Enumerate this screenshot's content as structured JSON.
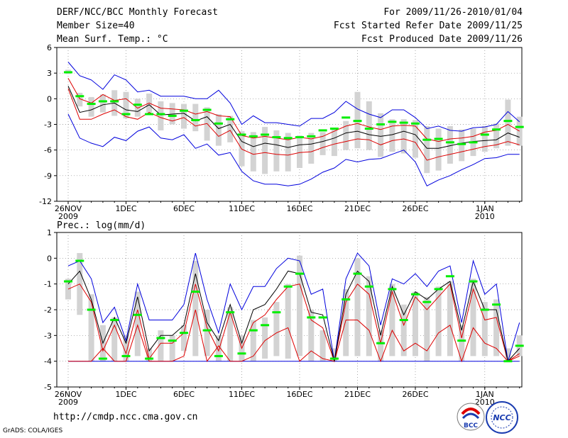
{
  "header": {
    "left": [
      "DERF/NCC/BCC Monthly Forecast",
      "Member Size=40",
      "Mean Surf. Temp.: °C"
    ],
    "right": [
      "For 2009/11/26-2010/01/04",
      "Fcst Started Refer Date 2009/11/25",
      "Fcst Produced Date 2009/11/26"
    ]
  },
  "footer": {
    "url": "http://cmdp.ncc.cma.gov.cn",
    "credit": "GrADS: COLA/IGES"
  },
  "logos": {
    "bcc": "BCC",
    "ncc": "NCC"
  },
  "colors": {
    "box": "#d3d3d3",
    "mean": "#00ee00",
    "envelope": "#0000dd",
    "spread": "#dd0000",
    "median": "#000000"
  },
  "chart_data": [
    {
      "type": "box-ensemble",
      "title": "Mean Surf. Temp.: °C",
      "x_ticks": [
        {
          "i": 0,
          "label": "26NOV",
          "sub": "2009"
        },
        {
          "i": 5,
          "label": "1DEC"
        },
        {
          "i": 10,
          "label": "6DEC"
        },
        {
          "i": 15,
          "label": "11DEC"
        },
        {
          "i": 20,
          "label": "16DEC"
        },
        {
          "i": 25,
          "label": "21DEC"
        },
        {
          "i": 30,
          "label": "26DEC"
        },
        {
          "i": 36,
          "label": "1JAN",
          "sub": "2010"
        }
      ],
      "ylim": [
        -12,
        6
      ],
      "yticks": [
        -12,
        -9,
        -6,
        -3,
        0,
        3,
        6
      ],
      "days": 40,
      "series": {
        "box_top": [
          3.4,
          0.7,
          0.2,
          0.5,
          1.0,
          0.8,
          0.0,
          0.6,
          -0.3,
          -0.5,
          -0.6,
          -0.6,
          -1.0,
          -1.8,
          -2.0,
          -3.8,
          -3.9,
          -3.3,
          -3.7,
          -4.0,
          -4.3,
          -4.0,
          -3.9,
          -3.6,
          -2.6,
          0.8,
          -0.3,
          -1.7,
          -2.4,
          -2.4,
          -2.5,
          -3.2,
          -3.5,
          -3.2,
          -3.6,
          -3.5,
          -3.2,
          -2.9,
          -0.1,
          -2.1
        ],
        "box_bottom": [
          2.9,
          -0.9,
          -2.1,
          -1.6,
          -2.0,
          -2.3,
          -2.1,
          -1.6,
          -3.7,
          -3.0,
          -3.5,
          -3.8,
          -4.9,
          -5.5,
          -5.1,
          -7.9,
          -8.5,
          -8.8,
          -8.5,
          -8.5,
          -8.1,
          -7.6,
          -6.6,
          -6.7,
          -6.0,
          -5.8,
          -6.0,
          -6.8,
          -6.2,
          -6.4,
          -6.9,
          -8.7,
          -8.4,
          -7.6,
          -7.3,
          -6.7,
          -6.2,
          -5.8,
          -5.5,
          -5.5
        ],
        "mean": [
          3.1,
          0.3,
          -0.6,
          -0.3,
          -0.3,
          -1.8,
          -0.7,
          -1.8,
          -1.8,
          -2.0,
          -1.4,
          -2.5,
          -1.3,
          -2.9,
          -2.4,
          -4.2,
          -4.4,
          -4.2,
          -4.5,
          -4.6,
          -4.5,
          -4.4,
          -3.7,
          -3.5,
          -2.2,
          -2.6,
          -3.5,
          -3.0,
          -2.7,
          -2.8,
          -2.9,
          -4.8,
          -4.7,
          -5.1,
          -5.3,
          -5.1,
          -4.2,
          -3.6,
          -2.6,
          -3.3
        ],
        "env_max": [
          4.3,
          2.7,
          2.2,
          1.1,
          2.8,
          2.2,
          0.8,
          1.0,
          0.3,
          0.3,
          0.3,
          0.0,
          0.0,
          1.0,
          -0.5,
          -3.0,
          -2.0,
          -2.8,
          -2.8,
          -3.0,
          -3.2,
          -2.3,
          -2.3,
          -1.6,
          -0.3,
          -1.2,
          -1.8,
          -2.2,
          -1.3,
          -1.3,
          -2.2,
          -3.5,
          -3.2,
          -3.7,
          -3.8,
          -3.4,
          -3.3,
          -3.0,
          -1.5,
          -2.7
        ],
        "red_top": [
          2.4,
          0.0,
          -0.5,
          0.5,
          -0.2,
          0.0,
          -1.1,
          -0.5,
          -1.1,
          -1.2,
          -1.3,
          -1.8,
          -1.5,
          -2.0,
          -2.1,
          -4.3,
          -4.6,
          -4.4,
          -4.6,
          -4.8,
          -4.5,
          -4.7,
          -4.4,
          -3.8,
          -3.2,
          -2.9,
          -3.3,
          -3.6,
          -3.2,
          -3.1,
          -3.2,
          -4.7,
          -5.0,
          -4.7,
          -4.6,
          -4.4,
          -3.9,
          -3.7,
          -3.0,
          -3.8
        ],
        "median": [
          1.5,
          -1.6,
          -1.3,
          -0.7,
          -0.5,
          -1.3,
          -1.5,
          -0.7,
          -1.9,
          -1.8,
          -1.7,
          -2.6,
          -2.1,
          -3.5,
          -3.0,
          -5.0,
          -5.6,
          -5.2,
          -5.4,
          -5.7,
          -5.4,
          -5.3,
          -5.0,
          -4.6,
          -4.0,
          -3.8,
          -4.2,
          -4.4,
          -4.2,
          -3.8,
          -4.2,
          -5.8,
          -5.8,
          -5.5,
          -5.2,
          -5.0,
          -4.9,
          -4.8,
          -4.0,
          -4.5
        ],
        "red_bottom": [
          1.2,
          -2.4,
          -2.4,
          -1.8,
          -1.3,
          -2.1,
          -2.4,
          -1.6,
          -2.2,
          -2.6,
          -2.2,
          -3.2,
          -2.9,
          -4.4,
          -3.7,
          -5.9,
          -6.5,
          -6.3,
          -6.5,
          -6.6,
          -6.3,
          -6.2,
          -5.7,
          -5.3,
          -5.0,
          -4.7,
          -4.8,
          -5.4,
          -4.9,
          -4.7,
          -5.1,
          -7.2,
          -6.8,
          -6.5,
          -6.2,
          -5.9,
          -5.6,
          -5.4,
          -5.0,
          -5.4
        ],
        "env_min": [
          -1.8,
          -4.6,
          -5.2,
          -5.6,
          -4.5,
          -4.9,
          -3.8,
          -3.3,
          -4.6,
          -4.8,
          -4.2,
          -5.8,
          -5.3,
          -6.6,
          -6.3,
          -8.5,
          -9.6,
          -10.0,
          -10.0,
          -10.2,
          -10.0,
          -9.4,
          -8.6,
          -8.1,
          -7.1,
          -7.4,
          -7.1,
          -7.0,
          -6.5,
          -6.0,
          -7.4,
          -10.2,
          -9.5,
          -9.0,
          -8.3,
          -7.7,
          -7.0,
          -6.9,
          -6.5,
          -6.5
        ]
      }
    },
    {
      "type": "box-ensemble",
      "title": "Prec.: log(mm/d)",
      "x_ticks": [
        {
          "i": 0,
          "label": "26NOV",
          "sub": "2009"
        },
        {
          "i": 5,
          "label": "1DEC"
        },
        {
          "i": 10,
          "label": "6DEC"
        },
        {
          "i": 15,
          "label": "11DEC"
        },
        {
          "i": 20,
          "label": "16DEC"
        },
        {
          "i": 25,
          "label": "21DEC"
        },
        {
          "i": 30,
          "label": "26DEC"
        },
        {
          "i": 36,
          "label": "1JAN",
          "sub": "2010"
        }
      ],
      "ylim": [
        -5,
        1
      ],
      "yticks": [
        -5,
        -4,
        -3,
        -2,
        -1,
        0,
        1
      ],
      "days": 40,
      "series": {
        "box_top": [
          -0.8,
          0.2,
          -1.4,
          -2.6,
          -2.3,
          -3.0,
          -1.3,
          -3.5,
          -2.8,
          -3.0,
          -2.6,
          -0.1,
          -2.0,
          -3.0,
          -1.9,
          -3.0,
          -2.4,
          -2.3,
          -1.7,
          -1.0,
          0.1,
          -2.0,
          -2.8,
          -3.5,
          -1.2,
          0.0,
          -0.7,
          -2.8,
          -1.0,
          -1.8,
          -1.3,
          -1.5,
          -1.1,
          -0.9,
          -2.6,
          -0.8,
          -1.7,
          -1.6,
          -3.5,
          -3.0
        ],
        "box_bottom": [
          -1.6,
          -2.2,
          -4.0,
          -4.0,
          -4.0,
          -4.0,
          -3.8,
          -4.0,
          -4.0,
          -4.0,
          -3.6,
          -3.8,
          -3.8,
          -4.0,
          -4.0,
          -4.0,
          -4.0,
          -3.9,
          -3.8,
          -3.9,
          -3.8,
          -4.0,
          -4.0,
          -4.0,
          -3.8,
          -3.8,
          -3.8,
          -4.0,
          -3.8,
          -3.8,
          -3.8,
          -4.0,
          -3.8,
          -3.8,
          -4.0,
          -3.8,
          -3.8,
          -3.8,
          -4.0,
          -3.8
        ],
        "mean": [
          -0.9,
          -0.1,
          -2.0,
          -3.9,
          -2.4,
          -3.8,
          -2.2,
          -3.9,
          -3.1,
          -3.2,
          -2.9,
          -1.3,
          -2.8,
          -3.8,
          -2.1,
          -3.7,
          -2.8,
          -2.6,
          -2.1,
          -1.1,
          -0.6,
          -2.3,
          -2.3,
          -3.9,
          -1.6,
          -0.6,
          -1.1,
          -3.3,
          -1.2,
          -2.4,
          -1.4,
          -1.7,
          -1.2,
          -0.7,
          -3.2,
          -0.9,
          -2.0,
          -1.8,
          -4.0,
          -3.4
        ],
        "env_max": [
          -0.3,
          -0.1,
          -0.8,
          -2.5,
          -1.9,
          -3.2,
          -1.0,
          -2.4,
          -2.4,
          -2.4,
          -1.8,
          0.2,
          -1.6,
          -2.9,
          -1.0,
          -2.0,
          -1.1,
          -1.1,
          -0.4,
          0.0,
          -0.1,
          -1.4,
          -1.2,
          -4.0,
          -0.8,
          0.2,
          -0.3,
          -2.6,
          -0.8,
          -1.0,
          -0.6,
          -1.1,
          -0.5,
          -0.3,
          -2.5,
          -0.1,
          -1.4,
          -1.0,
          -4.0,
          -2.5
        ],
        "median": [
          -1.0,
          -0.5,
          -1.6,
          -3.3,
          -2.3,
          -3.3,
          -1.5,
          -3.6,
          -3.0,
          -3.0,
          -2.6,
          -0.6,
          -2.5,
          -3.2,
          -1.8,
          -3.3,
          -2.0,
          -1.8,
          -1.2,
          -0.5,
          -0.6,
          -2.1,
          -2.2,
          -4.0,
          -1.4,
          -0.5,
          -0.9,
          -3.0,
          -1.1,
          -2.2,
          -1.3,
          -1.6,
          -1.2,
          -0.9,
          -2.8,
          -0.9,
          -2.0,
          -2.0,
          -4.0,
          -3.5
        ],
        "red_top": [
          -1.2,
          -1.0,
          -1.7,
          -3.6,
          -2.6,
          -3.7,
          -2.0,
          -3.9,
          -3.3,
          -3.3,
          -2.9,
          -1.0,
          -2.7,
          -3.6,
          -2.1,
          -3.5,
          -2.5,
          -2.2,
          -1.6,
          -1.1,
          -1.0,
          -2.4,
          -2.7,
          -4.0,
          -1.7,
          -1.0,
          -1.4,
          -3.3,
          -1.3,
          -2.6,
          -1.5,
          -2.0,
          -1.5,
          -1.0,
          -3.1,
          -1.2,
          -2.4,
          -2.3,
          -4.0,
          -3.7
        ],
        "red_bottom": [
          -4.0,
          -4.0,
          -4.0,
          -3.5,
          -4.0,
          -4.0,
          -2.6,
          -4.0,
          -4.0,
          -4.0,
          -3.8,
          -2.0,
          -4.0,
          -3.4,
          -4.0,
          -4.0,
          -3.8,
          -3.2,
          -2.9,
          -2.7,
          -4.0,
          -3.6,
          -3.9,
          -4.0,
          -2.4,
          -2.4,
          -2.8,
          -4.0,
          -2.8,
          -3.6,
          -3.3,
          -3.6,
          -2.9,
          -2.6,
          -4.0,
          -2.7,
          -3.3,
          -3.5,
          -4.0,
          -3.8
        ],
        "env_min": [
          -4.0,
          -4.0,
          -4.0,
          -4.0,
          -4.0,
          -4.0,
          -4.0,
          -4.0,
          -4.0,
          -4.0,
          -4.0,
          -4.0,
          -4.0,
          -4.0,
          -4.0,
          -4.0,
          -4.0,
          -4.0,
          -4.0,
          -4.0,
          -4.0,
          -4.0,
          -4.0,
          -4.0,
          -4.0,
          -4.0,
          -4.0,
          -4.0,
          -4.0,
          -4.0,
          -4.0,
          -4.0,
          -4.0,
          -4.0,
          -4.0,
          -4.0,
          -4.0,
          -4.0,
          -4.0,
          -4.0
        ]
      }
    }
  ]
}
